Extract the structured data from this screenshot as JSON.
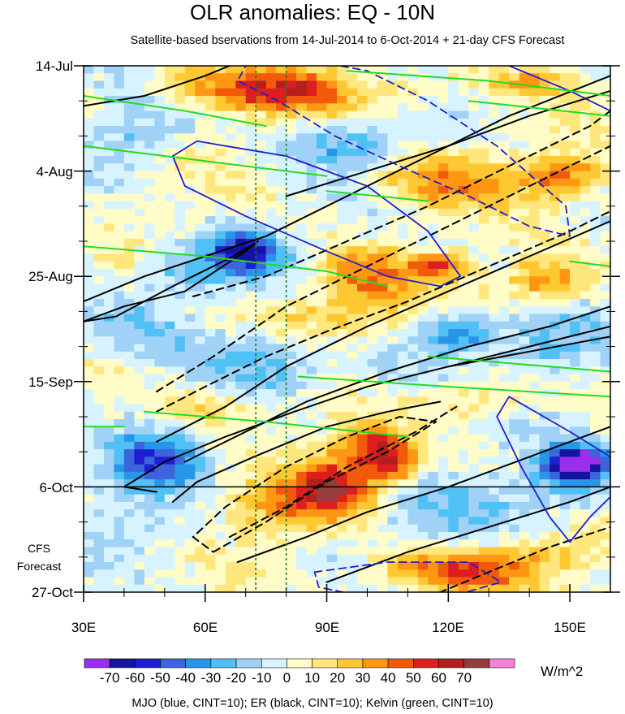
{
  "chart_data": {
    "type": "heatmap",
    "title": "OLR anomalies: EQ - 10N",
    "subtitle": "Satellite-based bservations from 14-Jul-2014 to 6-Oct-2014 + 21-day CFS Forecast",
    "x_axis": {
      "label": "",
      "range": [
        30,
        160
      ],
      "ticks": [
        {
          "value": 30,
          "label": "30E"
        },
        {
          "value": 60,
          "label": "60E"
        },
        {
          "value": 90,
          "label": "90E"
        },
        {
          "value": 120,
          "label": "120E"
        },
        {
          "value": 150,
          "label": "150E"
        }
      ]
    },
    "y_axis": {
      "range_days": [
        0,
        105
      ],
      "direction": "time increases downward",
      "ticks": [
        {
          "day": 0,
          "label": "14-Jul"
        },
        {
          "day": 21,
          "label": "4-Aug"
        },
        {
          "day": 42,
          "label": "25-Aug"
        },
        {
          "day": 63,
          "label": "15-Sep"
        },
        {
          "day": 84,
          "label": "6-Oct"
        },
        {
          "day": 105,
          "label": "27-Oct"
        }
      ]
    },
    "forecast_start_day": 84,
    "forecast_label_line1": "CFS",
    "forecast_label_line2": "Forecast",
    "reference_longitudes": [
      72.5,
      80
    ],
    "colorbar": {
      "units": "W/m^2",
      "levels": [
        -70,
        -60,
        -50,
        -40,
        -30,
        -20,
        -10,
        0,
        10,
        20,
        30,
        40,
        50,
        60,
        70
      ],
      "level_labels": [
        "-70",
        "-60",
        "-50",
        "-40",
        "-30",
        "-20",
        "-10",
        "0",
        "10",
        "20",
        "30",
        "40",
        "50",
        "60",
        "70"
      ],
      "colors": [
        "#9a2eea",
        "#1414a0",
        "#1e1ed2",
        "#3c64dc",
        "#2896e6",
        "#50c0f5",
        "#a0d2f7",
        "#d6f3ff",
        "#fffcc8",
        "#ffe67d",
        "#ffc832",
        "#ff9614",
        "#f05a0a",
        "#dc1e1e",
        "#b41e1e",
        "#963c3c",
        "#f582d2"
      ]
    },
    "contours_legend": "MJO (blue, CINT=10); ER (black, CINT=10); Kelvin (green, CINT=10)",
    "contour_colors": {
      "MJO": "#1e1ed2",
      "ER": "#000000",
      "Kelvin": "#22dd22"
    },
    "anomaly_features": [
      {
        "lon": 72,
        "day": 5,
        "value": 45,
        "sx": 9,
        "sy": 3
      },
      {
        "lon": 88,
        "day": 5,
        "value": 35,
        "sx": 7,
        "sy": 3
      },
      {
        "lon": 55,
        "day": 3,
        "value": 25,
        "sx": 6,
        "sy": 3
      },
      {
        "lon": 110,
        "day": 5,
        "value": 20,
        "sx": 8,
        "sy": 3
      },
      {
        "lon": 140,
        "day": 3,
        "value": 25,
        "sx": 8,
        "sy": 2
      },
      {
        "lon": 45,
        "day": 13,
        "value": -20,
        "sx": 8,
        "sy": 4
      },
      {
        "lon": 95,
        "day": 16,
        "value": -25,
        "sx": 10,
        "sy": 3
      },
      {
        "lon": 118,
        "day": 23,
        "value": 35,
        "sx": 12,
        "sy": 4
      },
      {
        "lon": 148,
        "day": 22,
        "value": 40,
        "sx": 8,
        "sy": 3
      },
      {
        "lon": 70,
        "day": 37,
        "value": -60,
        "sx": 6,
        "sy": 3
      },
      {
        "lon": 55,
        "day": 41,
        "value": -25,
        "sx": 8,
        "sy": 4
      },
      {
        "lon": 100,
        "day": 42,
        "value": 40,
        "sx": 8,
        "sy": 4
      },
      {
        "lon": 118,
        "day": 40,
        "value": 45,
        "sx": 5,
        "sy": 2
      },
      {
        "lon": 145,
        "day": 43,
        "value": 40,
        "sx": 7,
        "sy": 3
      },
      {
        "lon": 88,
        "day": 50,
        "value": 25,
        "sx": 12,
        "sy": 3
      },
      {
        "lon": 40,
        "day": 52,
        "value": -20,
        "sx": 10,
        "sy": 4
      },
      {
        "lon": 122,
        "day": 53,
        "value": -40,
        "sx": 6,
        "sy": 3
      },
      {
        "lon": 145,
        "day": 55,
        "value": -20,
        "sx": 10,
        "sy": 4
      },
      {
        "lon": 75,
        "day": 59,
        "value": -20,
        "sx": 10,
        "sy": 4
      },
      {
        "lon": 105,
        "day": 61,
        "value": -15,
        "sx": 10,
        "sy": 4
      },
      {
        "lon": 60,
        "day": 68,
        "value": 20,
        "sx": 8,
        "sy": 3
      },
      {
        "lon": 130,
        "day": 66,
        "value": 20,
        "sx": 10,
        "sy": 3
      },
      {
        "lon": 48,
        "day": 79,
        "value": -45,
        "sx": 8,
        "sy": 4
      },
      {
        "lon": 92,
        "day": 84,
        "value": 55,
        "sx": 7,
        "sy": 4
      },
      {
        "lon": 106,
        "day": 79,
        "value": 55,
        "sx": 5,
        "sy": 3
      },
      {
        "lon": 100,
        "day": 75,
        "value": 40,
        "sx": 6,
        "sy": 3
      },
      {
        "lon": 78,
        "day": 88,
        "value": 30,
        "sx": 10,
        "sy": 4
      },
      {
        "lon": 152,
        "day": 79,
        "value": -70,
        "sx": 5,
        "sy": 2
      },
      {
        "lon": 150,
        "day": 82,
        "value": -40,
        "sx": 8,
        "sy": 4
      },
      {
        "lon": 125,
        "day": 90,
        "value": -15,
        "sx": 15,
        "sy": 4
      },
      {
        "lon": 50,
        "day": 92,
        "value": -10,
        "sx": 12,
        "sy": 5
      },
      {
        "lon": 120,
        "day": 101,
        "value": 40,
        "sx": 14,
        "sy": 3
      },
      {
        "lon": 140,
        "day": 98,
        "value": 20,
        "sx": 12,
        "sy": 3
      }
    ],
    "mjo_contours": [
      {
        "points": [
          [
            65,
            16
          ],
          [
            80,
            18
          ],
          [
            100,
            24
          ],
          [
            115,
            33
          ],
          [
            123,
            42
          ],
          [
            118,
            44
          ],
          [
            105,
            42
          ],
          [
            90,
            37
          ],
          [
            70,
            30
          ],
          [
            55,
            24
          ],
          [
            52,
            18
          ],
          [
            58,
            15
          ]
        ],
        "closed": true,
        "dashed": false
      },
      {
        "points": [
          [
            70,
            0
          ],
          [
            80,
            -2
          ],
          [
            100,
            1
          ],
          [
            115,
            7
          ],
          [
            132,
            16
          ],
          [
            149,
            28
          ],
          [
            150,
            34
          ],
          [
            140,
            32
          ],
          [
            125,
            26
          ],
          [
            108,
            20
          ],
          [
            92,
            14
          ],
          [
            78,
            7
          ],
          [
            68,
            3
          ]
        ],
        "closed": true,
        "dashed": true
      },
      {
        "points": [
          [
            135,
            0
          ],
          [
            150,
            5
          ],
          [
            160,
            9
          ]
        ],
        "closed": false,
        "dashed": false
      },
      {
        "points": [
          [
            135,
            66
          ],
          [
            150,
            73
          ],
          [
            160,
            78
          ],
          [
            160,
            86
          ],
          [
            155,
            90
          ],
          [
            150,
            95
          ],
          [
            145,
            90
          ],
          [
            138,
            80
          ],
          [
            132,
            70
          ]
        ],
        "closed": true,
        "dashed": false
      },
      {
        "points": [
          [
            87,
            101
          ],
          [
            105,
            99
          ],
          [
            125,
            99
          ],
          [
            133,
            103
          ],
          [
            120,
            106
          ],
          [
            100,
            106
          ],
          [
            88,
            104
          ]
        ],
        "closed": true,
        "dashed": true
      }
    ],
    "er_contours": [
      {
        "points": [
          [
            30,
            8
          ],
          [
            45,
            6
          ],
          [
            60,
            2
          ],
          [
            75,
            -3
          ]
        ],
        "closed": false,
        "dashed": false
      },
      {
        "points": [
          [
            30,
            47
          ],
          [
            45,
            42
          ],
          [
            60,
            38
          ],
          [
            75,
            34
          ],
          [
            95,
            26
          ],
          [
            115,
            18
          ],
          [
            135,
            10
          ],
          [
            160,
            2
          ]
        ],
        "closed": false,
        "dashed": false
      },
      {
        "points": [
          [
            30,
            51
          ],
          [
            40,
            48
          ],
          [
            55,
            45
          ],
          [
            70,
            37
          ],
          [
            73,
            35
          ],
          [
            67,
            38
          ],
          [
            52,
            44
          ],
          [
            38,
            50
          ]
        ],
        "closed": true,
        "dashed": false
      },
      {
        "points": [
          [
            80,
            26
          ],
          [
            100,
            21
          ],
          [
            120,
            16
          ],
          [
            140,
            10
          ],
          [
            160,
            5
          ]
        ],
        "closed": false,
        "dashed": false
      },
      {
        "points": [
          [
            57,
            46
          ],
          [
            75,
            42
          ],
          [
            95,
            35
          ],
          [
            115,
            28
          ],
          [
            135,
            20
          ],
          [
            155,
            12
          ],
          [
            160,
            9
          ]
        ],
        "closed": false,
        "dashed": true
      },
      {
        "points": [
          [
            48,
            65
          ],
          [
            62,
            58
          ],
          [
            80,
            48
          ],
          [
            100,
            40
          ],
          [
            120,
            32
          ],
          [
            140,
            24
          ],
          [
            160,
            16
          ]
        ],
        "closed": false,
        "dashed": true
      },
      {
        "points": [
          [
            48,
            69
          ],
          [
            60,
            64
          ],
          [
            75,
            58
          ],
          [
            90,
            53
          ],
          [
            110,
            47
          ],
          [
            130,
            40
          ],
          [
            150,
            33
          ],
          [
            160,
            29
          ]
        ],
        "closed": false,
        "dashed": true
      },
      {
        "points": [
          [
            48,
            75
          ],
          [
            65,
            68
          ],
          [
            80,
            60
          ],
          [
            100,
            52
          ],
          [
            120,
            45
          ],
          [
            140,
            38
          ],
          [
            160,
            31
          ]
        ],
        "closed": false,
        "dashed": false
      },
      {
        "points": [
          [
            55,
            79
          ],
          [
            70,
            73
          ],
          [
            85,
            67
          ],
          [
            105,
            61
          ],
          [
            125,
            56
          ],
          [
            145,
            52
          ],
          [
            160,
            48
          ]
        ],
        "closed": false,
        "dashed": false
      },
      {
        "points": [
          [
            48,
            85
          ],
          [
            40,
            84
          ],
          [
            50,
            79
          ],
          [
            65,
            74
          ],
          [
            82,
            69
          ],
          [
            100,
            64
          ],
          [
            120,
            60
          ],
          [
            140,
            57
          ],
          [
            160,
            54
          ]
        ],
        "closed": false,
        "dashed": false
      },
      {
        "points": [
          [
            52,
            87
          ],
          [
            58,
            83
          ],
          [
            72,
            78
          ],
          [
            90,
            72
          ],
          [
            105,
            69
          ],
          [
            118,
            67
          ]
        ],
        "closed": false,
        "dashed": false
      },
      {
        "points": [
          [
            62,
            97
          ],
          [
            75,
            91
          ],
          [
            90,
            83
          ],
          [
            105,
            77
          ],
          [
            117,
            71
          ],
          [
            108,
            70
          ],
          [
            95,
            74
          ],
          [
            80,
            80
          ],
          [
            65,
            88
          ],
          [
            57,
            94
          ]
        ],
        "closed": true,
        "dashed": true
      },
      {
        "points": [
          [
            66,
            94
          ],
          [
            80,
            88
          ],
          [
            95,
            80
          ],
          [
            112,
            73
          ],
          [
            122,
            68
          ]
        ],
        "closed": false,
        "dashed": true
      },
      {
        "points": [
          [
            68,
            99
          ],
          [
            85,
            94
          ],
          [
            100,
            89
          ],
          [
            120,
            84
          ],
          [
            140,
            78
          ],
          [
            160,
            72
          ]
        ],
        "closed": false,
        "dashed": false
      },
      {
        "points": [
          [
            90,
            103
          ],
          [
            110,
            97
          ],
          [
            130,
            92
          ],
          [
            150,
            87
          ],
          [
            160,
            84
          ]
        ],
        "closed": false,
        "dashed": false
      },
      {
        "points": [
          [
            115,
            106
          ],
          [
            130,
            101
          ],
          [
            145,
            96
          ],
          [
            160,
            92
          ]
        ],
        "closed": false,
        "dashed": true
      },
      {
        "points": [
          [
            120,
            60
          ],
          [
            140,
            56
          ],
          [
            160,
            52
          ]
        ],
        "closed": false,
        "dashed": false
      }
    ],
    "kelvin_contours": [
      {
        "points": [
          [
            30,
            6
          ],
          [
            55,
            9
          ],
          [
            75,
            12
          ]
        ],
        "closed": false,
        "dashed": false
      },
      {
        "points": [
          [
            30,
            16
          ],
          [
            60,
            19
          ],
          [
            90,
            22
          ]
        ],
        "closed": false,
        "dashed": false
      },
      {
        "points": [
          [
            30,
            36
          ],
          [
            60,
            38
          ],
          [
            90,
            41
          ],
          [
            105,
            44
          ]
        ],
        "closed": false,
        "dashed": false
      },
      {
        "points": [
          [
            45,
            69
          ],
          [
            75,
            71
          ],
          [
            110,
            74
          ]
        ],
        "closed": false,
        "dashed": false
      },
      {
        "points": [
          [
            83,
            62
          ],
          [
            120,
            64
          ],
          [
            160,
            66
          ]
        ],
        "closed": false,
        "dashed": false
      },
      {
        "points": [
          [
            95,
            1
          ],
          [
            130,
            3
          ],
          [
            160,
            6
          ]
        ],
        "closed": false,
        "dashed": false
      },
      {
        "points": [
          [
            125,
            7
          ],
          [
            160,
            10
          ]
        ],
        "closed": false,
        "dashed": false
      },
      {
        "points": [
          [
            90,
            25
          ],
          [
            115,
            27
          ]
        ],
        "closed": false,
        "dashed": false
      },
      {
        "points": [
          [
            150,
            39
          ],
          [
            160,
            40
          ]
        ],
        "closed": false,
        "dashed": false
      },
      {
        "points": [
          [
            115,
            58
          ],
          [
            160,
            61
          ]
        ],
        "closed": false,
        "dashed": false
      },
      {
        "points": [
          [
            30,
            72
          ],
          [
            40,
            72
          ]
        ],
        "closed": false,
        "dashed": false
      }
    ]
  }
}
